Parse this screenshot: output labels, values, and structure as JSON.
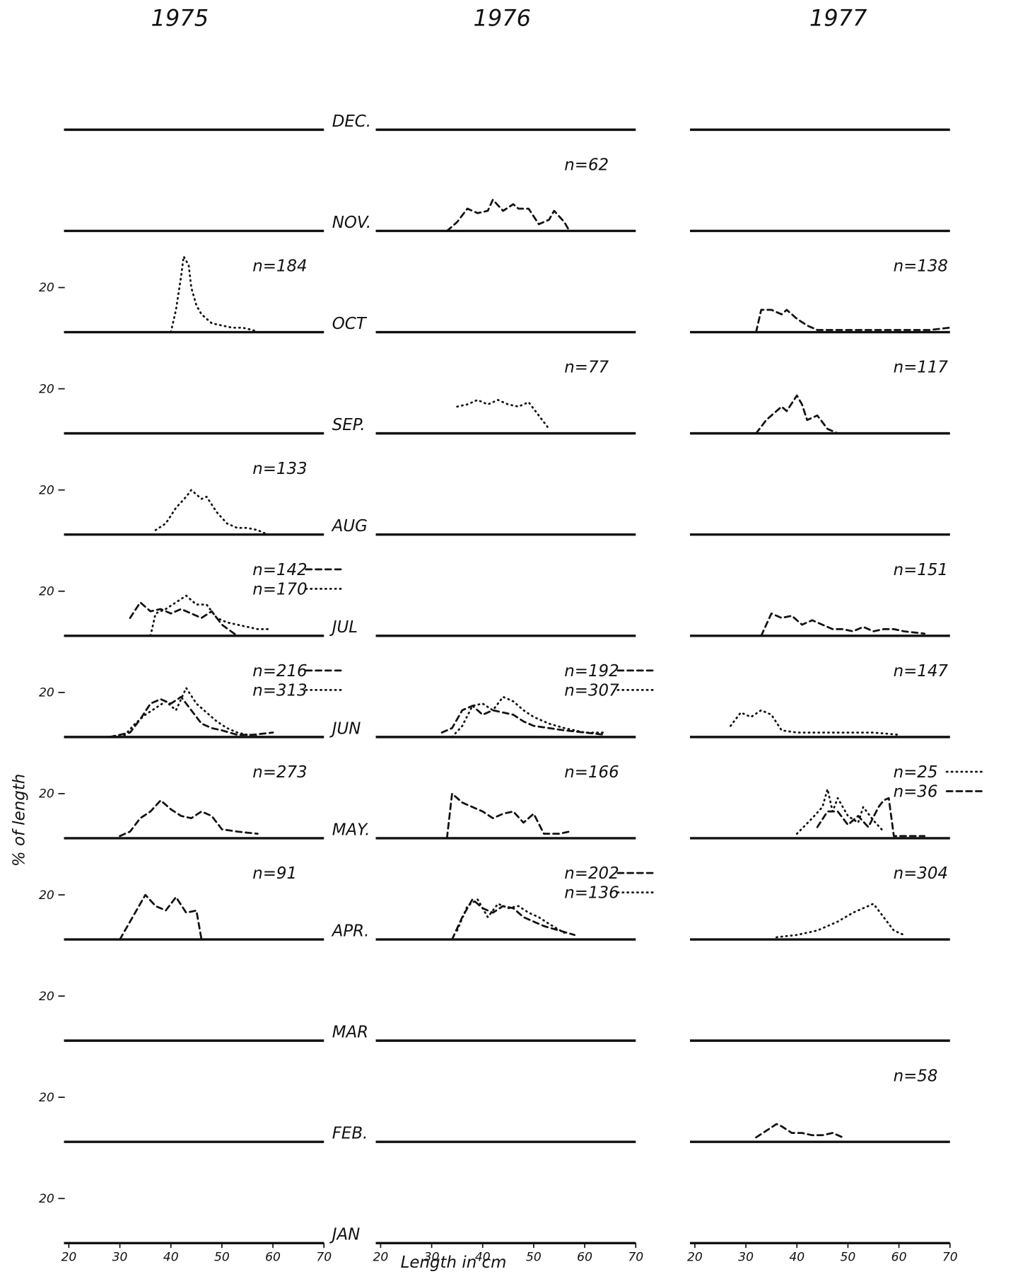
{
  "chart_data": {
    "type": "line",
    "columns": [
      "1975",
      "1976",
      "1977"
    ],
    "xlabel": "Length in cm",
    "ylabel": "% of length",
    "xlim": [
      20,
      70
    ],
    "xticks": [
      20,
      30,
      40,
      50,
      60,
      70
    ],
    "ylim": [
      0,
      40
    ],
    "yticks": [
      20
    ],
    "color": "#111111",
    "rows": [
      {
        "month": "DEC.",
        "cells": [
          null,
          null,
          null
        ]
      },
      {
        "month": "NOV.",
        "cells": [
          null,
          {
            "series": [
              {
                "name": "n=62",
                "dash": "dashed",
                "x": [
                  33,
                  35,
                  37,
                  39,
                  41,
                  42,
                  44,
                  46,
                  47,
                  49,
                  51,
                  53,
                  54,
                  56,
                  57
                ],
                "values": [
                  0,
                  4,
                  10,
                  8,
                  9,
                  14,
                  9,
                  12,
                  10,
                  10,
                  3,
                  5,
                  9,
                  4,
                  0
                ]
              }
            ]
          },
          null
        ]
      },
      {
        "month": "OCT",
        "cells": [
          {
            "series": [
              {
                "name": "n=184",
                "dash": "dotted",
                "x": [
                  40,
                  41,
                  42,
                  42.5,
                  43.5,
                  44,
                  45,
                  46,
                  48,
                  50,
                  52,
                  54,
                  56,
                  57
                ],
                "values": [
                  0,
                  10,
                  25,
                  34,
                  30,
                  20,
                  12,
                  8,
                  4,
                  3,
                  2,
                  2,
                  1,
                  0
                ]
              }
            ]
          },
          null,
          {
            "series": [
              {
                "name": "n=138",
                "dash": "dashed",
                "x": [
                  32,
                  33,
                  35,
                  37,
                  38,
                  40,
                  42,
                  44,
                  50,
                  60,
                  66,
                  70
                ],
                "values": [
                  0,
                  10,
                  10,
                  8,
                  10,
                  6,
                  3,
                  1,
                  1,
                  1,
                  1,
                  2
                ]
              }
            ]
          }
        ]
      },
      {
        "month": "SEP.",
        "cells": [
          null,
          {
            "series": [
              {
                "name": "n=77",
                "dash": "dotted",
                "x": [
                  35,
                  37,
                  39,
                  41,
                  43,
                  45,
                  47,
                  49,
                  51,
                  53
                ],
                "values": [
                  12,
                  13,
                  15,
                  13,
                  15,
                  13,
                  12,
                  14,
                  8,
                  2
                ]
              }
            ]
          },
          {
            "series": [
              {
                "name": "n=117",
                "dash": "dashed",
                "x": [
                  32,
                  34,
                  35,
                  37,
                  38,
                  40,
                  41,
                  42,
                  44,
                  46,
                  48,
                  55,
                  70
                ],
                "values": [
                  0,
                  6,
                  8,
                  12,
                  10,
                  17,
                  13,
                  6,
                  8,
                  2,
                  0,
                  0,
                  0
                ]
              }
            ]
          }
        ]
      },
      {
        "month": "AUG",
        "cells": [
          {
            "series": [
              {
                "name": "n=133",
                "dash": "dotted",
                "x": [
                  37,
                  39,
                  41,
                  43,
                  44,
                  46,
                  47,
                  49,
                  51,
                  53,
                  55,
                  57,
                  59
                ],
                "values": [
                  2,
                  5,
                  12,
                  17,
                  20,
                  16,
                  17,
                  10,
                  5,
                  3,
                  3,
                  2,
                  0
                ]
              }
            ]
          },
          null,
          null
        ]
      },
      {
        "month": "JUL",
        "cells": [
          {
            "series": [
              {
                "name": "n=142",
                "dash": "dashed",
                "x": [
                  32,
                  34,
                  36,
                  38,
                  40,
                  42,
                  44,
                  46,
                  48,
                  50,
                  53
                ],
                "values": [
                  8,
                  15,
                  11,
                  12,
                  10,
                  12,
                  10,
                  8,
                  11,
                  5,
                  0
                ]
              },
              {
                "name": "n=170",
                "dash": "dotted",
                "x": [
                  36,
                  37,
                  39,
                  41,
                  43,
                  45,
                  47,
                  49,
                  51,
                  53,
                  55,
                  57,
                  59
                ],
                "values": [
                  0,
                  10,
                  12,
                  15,
                  18,
                  14,
                  14,
                  8,
                  6,
                  5,
                  4,
                  3,
                  3
                ]
              }
            ]
          },
          null,
          {
            "series": [
              {
                "name": "n=151",
                "dash": "dashed",
                "x": [
                  33,
                  35,
                  37,
                  39,
                  41,
                  43,
                  45,
                  47,
                  49,
                  51,
                  53,
                  55,
                  57,
                  59,
                  61,
                  65
                ],
                "values": [
                  0,
                  10,
                  8,
                  9,
                  5,
                  7,
                  5,
                  3,
                  3,
                  2,
                  4,
                  2,
                  3,
                  3,
                  2,
                  1
                ]
              }
            ]
          }
        ]
      },
      {
        "month": "JUN",
        "cells": [
          {
            "series": [
              {
                "name": "n=216",
                "dash": "dashed",
                "x": [
                  28,
                  32,
                  34,
                  36,
                  38,
                  40,
                  42,
                  44,
                  46,
                  48,
                  50,
                  53,
                  56,
                  60
                ],
                "values": [
                  0,
                  2,
                  8,
                  15,
                  17,
                  15,
                  18,
                  12,
                  6,
                  4,
                  3,
                  1,
                  1,
                  2
                ]
              },
              {
                "name": "n=313",
                "dash": "dotted",
                "x": [
                  28,
                  31,
                  33,
                  35,
                  37,
                  39,
                  41,
                  43,
                  45,
                  47,
                  49,
                  51,
                  53,
                  55,
                  58
                ],
                "values": [
                  0,
                  1,
                  6,
                  10,
                  13,
                  16,
                  12,
                  22,
                  15,
                  11,
                  7,
                  4,
                  2,
                  1,
                  0
                ]
              }
            ]
          },
          {
            "series": [
              {
                "name": "n=192",
                "dash": "dashed",
                "x": [
                  32,
                  34,
                  36,
                  38,
                  40,
                  42,
                  44,
                  46,
                  48,
                  50,
                  53,
                  56,
                  60,
                  64
                ],
                "values": [
                  2,
                  4,
                  12,
                  14,
                  10,
                  12,
                  11,
                  10,
                  7,
                  5,
                  4,
                  3,
                  2,
                  1
                ]
              },
              {
                "name": "n=307",
                "dash": "dotted",
                "x": [
                  34,
                  36,
                  38,
                  40,
                  42,
                  44,
                  46,
                  48,
                  50,
                  53,
                  56,
                  60,
                  64
                ],
                "values": [
                  0,
                  5,
                  14,
                  15,
                  12,
                  18,
                  16,
                  12,
                  9,
                  6,
                  4,
                  2,
                  2
                ]
              }
            ]
          },
          {
            "series": [
              {
                "name": "n=147",
                "dash": "dotted",
                "x": [
                  27,
                  29,
                  31,
                  33,
                  35,
                  37,
                  40,
                  45,
                  50,
                  55,
                  60
                ],
                "values": [
                  5,
                  11,
                  9,
                  12,
                  10,
                  3,
                  2,
                  2,
                  2,
                  2,
                  1
                ]
              }
            ]
          }
        ]
      },
      {
        "month": "MAY.",
        "cells": [
          {
            "series": [
              {
                "name": "n=273",
                "dash": "dashed",
                "x": [
                  30,
                  32,
                  34,
                  36,
                  38,
                  40,
                  42,
                  44,
                  46,
                  48,
                  50,
                  53,
                  57
                ],
                "values": [
                  1,
                  3,
                  9,
                  12,
                  17,
                  13,
                  10,
                  9,
                  12,
                  10,
                  4,
                  3,
                  2
                ]
              }
            ]
          },
          {
            "series": [
              {
                "name": "n=166",
                "dash": "dashed",
                "x": [
                  33,
                  34,
                  36,
                  38,
                  40,
                  42,
                  44,
                  46,
                  48,
                  50,
                  52,
                  55,
                  57
                ],
                "values": [
                  0,
                  20,
                  16,
                  14,
                  12,
                  9,
                  11,
                  12,
                  7,
                  11,
                  2,
                  2,
                  3
                ]
              }
            ]
          },
          {
            "series": [
              {
                "name": "n=25",
                "dash": "dotted",
                "x": [
                  40,
                  43,
                  45,
                  46,
                  47,
                  48,
                  50,
                  52,
                  53,
                  55,
                  57
                ],
                "values": [
                  2,
                  9,
                  14,
                  22,
                  12,
                  18,
                  10,
                  7,
                  14,
                  8,
                  3
                ]
              },
              {
                "name": "n=36",
                "dash": "dashed",
                "x": [
                  44,
                  46,
                  48,
                  50,
                  52,
                  54,
                  56,
                  57,
                  58,
                  59,
                  65
                ],
                "values": [
                  5,
                  12,
                  12,
                  6,
                  10,
                  5,
                  14,
                  17,
                  18,
                  1,
                  1
                ]
              }
            ]
          }
        ]
      },
      {
        "month": "APR.",
        "cells": [
          {
            "series": [
              {
                "name": "n=91",
                "dash": "dashed",
                "x": [
                  30,
                  33,
                  35,
                  37,
                  39,
                  41,
                  43,
                  45,
                  46
                ],
                "values": [
                  0,
                  12,
                  20,
                  15,
                  13,
                  19,
                  12,
                  13,
                  0
                ]
              }
            ]
          },
          {
            "series": [
              {
                "name": "n=202",
                "dash": "dashed",
                "x": [
                  34,
                  36,
                  38,
                  40,
                  42,
                  44,
                  46,
                  48,
                  50,
                  52,
                  55,
                  58
                ],
                "values": [
                  0,
                  10,
                  18,
                  14,
                  12,
                  15,
                  14,
                  10,
                  8,
                  6,
                  4,
                  2
                ]
              },
              {
                "name": "n=136",
                "dash": "dotted",
                "x": [
                  35,
                  37,
                  39,
                  41,
                  43,
                  45,
                  47,
                  49,
                  51,
                  53,
                  56
                ],
                "values": [
                  4,
                  15,
                  18,
                  10,
                  16,
                  14,
                  15,
                  12,
                  10,
                  7,
                  3
                ]
              }
            ]
          },
          {
            "series": [
              {
                "name": "n=304",
                "dash": "dotted",
                "x": [
                  36,
                  40,
                  44,
                  48,
                  51,
                  53,
                  55,
                  57,
                  59,
                  61
                ],
                "values": [
                  1,
                  2,
                  4,
                  8,
                  12,
                  14,
                  16,
                  10,
                  4,
                  2
                ]
              }
            ]
          }
        ]
      },
      {
        "month": "MAR",
        "cells": [
          null,
          null,
          null
        ]
      },
      {
        "month": "FEB.",
        "cells": [
          null,
          null,
          {
            "series": [
              {
                "name": "n=58",
                "dash": "dashed",
                "x": [
                  32,
                  34,
                  36,
                  37,
                  39,
                  41,
                  43,
                  45,
                  47,
                  49
                ],
                "values": [
                  2,
                  5,
                  8,
                  7,
                  4,
                  4,
                  3,
                  3,
                  4,
                  2
                ]
              }
            ]
          }
        ]
      },
      {
        "month": "JAN",
        "cells": [
          null,
          null,
          null
        ]
      }
    ]
  }
}
